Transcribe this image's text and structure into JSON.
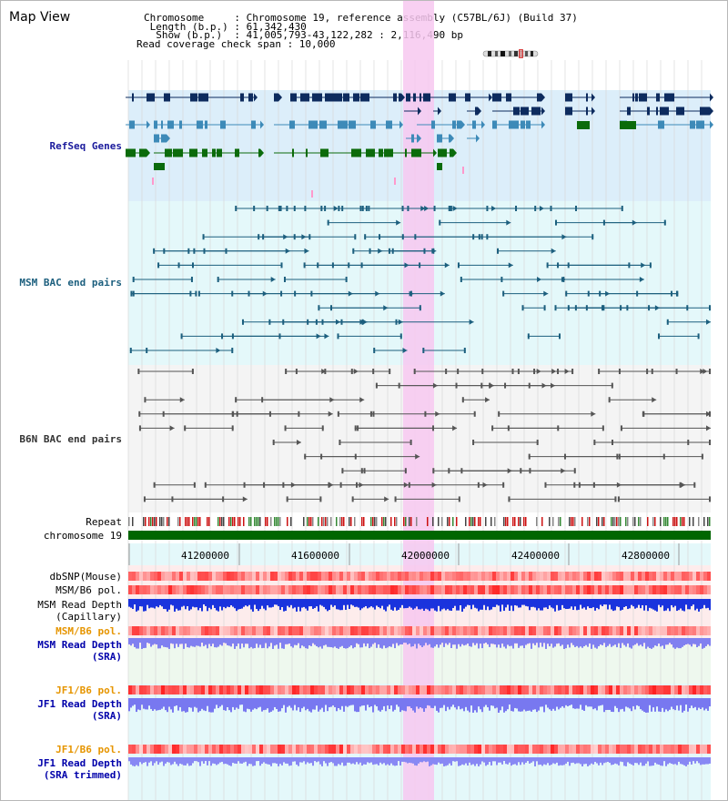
{
  "header": {
    "title": "Map View",
    "info_lines": [
      "Chromosome     : Chromosome 19, reference assembly (C57BL/6J) (Build 37)",
      " Length (b.p.) : 61,342,430",
      "  Show (b.p.)  : 41,005,793-43,122,282 : 2,116,490 bp",
      "Read coverage check span : 10,000"
    ]
  },
  "ideogram": {
    "name": "chromosome-ideogram-icon",
    "highlight_color": "#cc0000"
  },
  "selection": {
    "color": "#f7c8f0"
  },
  "tracks": {
    "refseq": {
      "label": "RefSeq Genes",
      "color": "#1a1a9c",
      "bg": "#dceefa"
    },
    "msm_bac": {
      "label": "MSM BAC end pairs",
      "color": "#1c5f7e",
      "bg": "#e4f8fa"
    },
    "b6n_bac": {
      "label": "B6N BAC end pairs",
      "color": "#333333",
      "bg": "#f4f4f4"
    },
    "repeat": {
      "label": "Repeat"
    },
    "chromosome": {
      "label": "chromosome 19",
      "color": "#006600"
    },
    "dbsnp": {
      "label": "dbSNP(Mouse)"
    },
    "msm_pol_1": {
      "label": "MSM/B6 pol."
    },
    "msm_depth_cap": {
      "label": "MSM Read Depth",
      "label2": "(Capillary)"
    },
    "msm_pol_2": {
      "label": "MSM/B6 pol.",
      "color": "#e69500"
    },
    "msm_depth_sra": {
      "label": "MSM Read Depth",
      "label2": "(SRA)",
      "color": "#0000aa"
    },
    "jf1_pol_1": {
      "label": "JF1/B6 pol.",
      "color": "#e69500"
    },
    "jf1_depth_sra": {
      "label": "JF1 Read Depth",
      "label2": "(SRA)",
      "color": "#0000aa"
    },
    "jf1_pol_2": {
      "label": "JF1/B6 pol.",
      "color": "#e69500"
    },
    "jf1_depth_trim": {
      "label": "JF1 Read Depth",
      "label2": "(SRA trimmed)",
      "color": "#0000aa"
    }
  },
  "axis": {
    "ticks": [
      "41200000",
      "41600000",
      "42000000",
      "42400000",
      "42800000"
    ]
  }
}
